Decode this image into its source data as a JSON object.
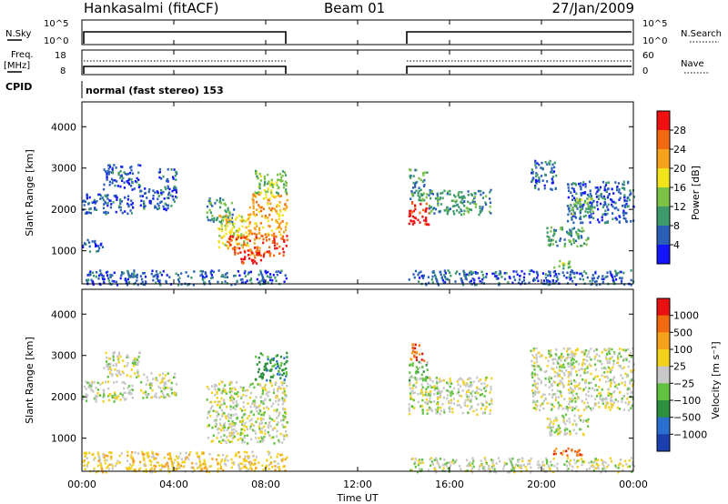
{
  "header": {
    "station": "Hankasalmi (fitACF)",
    "beam": "Beam 01",
    "date": "27/Jan/2009"
  },
  "noise_panel": {
    "left_label": "N.Sky",
    "left_ticks": [
      "10^5",
      "10^0"
    ],
    "right_ticks": [
      "10^5",
      "10^0"
    ],
    "right_label": "N.Search",
    "gap_utc": [
      8.83,
      14.25
    ]
  },
  "freq_panel": {
    "left_label_1": "Freq.",
    "left_label_2": "[MHz]",
    "left_ticks": [
      "18",
      "8"
    ],
    "right_ticks": [
      "60",
      "0"
    ],
    "right_label": "Nave"
  },
  "cpid_panel": {
    "label": "CPID",
    "program": "normal (fast stereo) 153"
  },
  "time_axis": {
    "ticks": [
      "00:00",
      "04:00",
      "08:00",
      "12:00",
      "16:00",
      "20:00",
      "00:00"
    ],
    "label": "Time UT"
  },
  "chart_data": [
    {
      "type": "heatmap",
      "quantity": "Power",
      "ylabel": "Slant Range [km]",
      "xlabel": "Time UT",
      "xlim_hours": [
        0,
        24
      ],
      "ylim_km": [
        200,
        4600
      ],
      "yticks": [
        "1000",
        "2000",
        "3000",
        "4000"
      ],
      "colorbar": {
        "label": "Power [dB]",
        "ticks": [
          "4",
          "8",
          "12",
          "16",
          "20",
          "24",
          "28"
        ],
        "colors": [
          "#1414ff",
          "#2a5fb8",
          "#3d9a6a",
          "#7cc247",
          "#f2e41c",
          "#f7a21c",
          "#f26a10",
          "#f01010"
        ]
      },
      "regions": [
        {
          "t": [
            0.0,
            2.2
          ],
          "r": [
            1900,
            2400
          ],
          "level": 1
        },
        {
          "t": [
            0.0,
            0.9
          ],
          "r": [
            1000,
            1300
          ],
          "level": 1
        },
        {
          "t": [
            0.9,
            2.5
          ],
          "r": [
            2500,
            3100
          ],
          "level": 1
        },
        {
          "t": [
            2.5,
            4.1
          ],
          "r": [
            2000,
            2600
          ],
          "level": 1
        },
        {
          "t": [
            3.3,
            4.1
          ],
          "r": [
            2700,
            3000
          ],
          "level": 1
        },
        {
          "t": [
            5.4,
            6.6
          ],
          "r": [
            1700,
            2300
          ],
          "level": 2
        },
        {
          "t": [
            5.9,
            7.2
          ],
          "r": [
            1100,
            1900
          ],
          "level": 4
        },
        {
          "t": [
            6.3,
            8.9
          ],
          "r": [
            900,
            1400
          ],
          "level": 6
        },
        {
          "t": [
            7.2,
            8.9
          ],
          "r": [
            1400,
            2400
          ],
          "level": 5
        },
        {
          "t": [
            7.5,
            8.9
          ],
          "r": [
            2400,
            3000
          ],
          "level": 3
        },
        {
          "t": [
            6.8,
            7.9
          ],
          "r": [
            700,
            1000
          ],
          "level": 7
        },
        {
          "t": [
            14.2,
            15.1
          ],
          "r": [
            1600,
            2200
          ],
          "level": 7
        },
        {
          "t": [
            15.0,
            17.8
          ],
          "r": [
            1900,
            2500
          ],
          "level": 2
        },
        {
          "t": [
            14.2,
            15.0
          ],
          "r": [
            2200,
            3000
          ],
          "level": 2
        },
        {
          "t": [
            19.5,
            20.6
          ],
          "r": [
            2500,
            3200
          ],
          "level": 1
        },
        {
          "t": [
            20.2,
            22.0
          ],
          "r": [
            1100,
            1600
          ],
          "level": 2
        },
        {
          "t": [
            21.1,
            24.0
          ],
          "r": [
            1700,
            2700
          ],
          "level": 1
        },
        {
          "t": [
            21.2,
            22.3
          ],
          "r": [
            1900,
            2300
          ],
          "level": 3
        },
        {
          "t": [
            20.4,
            21.3
          ],
          "r": [
            600,
            800
          ],
          "level": 3
        },
        {
          "t": [
            0.0,
            8.9
          ],
          "r": [
            200,
            550
          ],
          "level": 1
        },
        {
          "t": [
            14.2,
            24.0
          ],
          "r": [
            200,
            550
          ],
          "level": 1
        }
      ]
    },
    {
      "type": "heatmap",
      "quantity": "Velocity",
      "ylabel": "Slant Range [km]",
      "xlabel": "Time UT",
      "xlim_hours": [
        0,
        24
      ],
      "ylim_km": [
        200,
        4600
      ],
      "yticks": [
        "1000",
        "2000",
        "3000",
        "4000"
      ],
      "colorbar": {
        "label": "Velocity [m s⁻¹]",
        "ticks": [
          "1000",
          "500",
          "100",
          "25",
          "−25",
          "−100",
          "−500",
          "−1000"
        ],
        "colors": [
          "#1c3fae",
          "#2a6fd0",
          "#2e8f3e",
          "#60c240",
          "#c8c8c8",
          "#f2d21c",
          "#f7a21c",
          "#f26a10",
          "#e81010"
        ]
      },
      "regions": [
        {
          "t": [
            0.0,
            2.2
          ],
          "r": [
            1900,
            2400
          ],
          "level": 4
        },
        {
          "t": [
            0.9,
            2.5
          ],
          "r": [
            2500,
            3100
          ],
          "level": 4
        },
        {
          "t": [
            2.5,
            4.1
          ],
          "r": [
            2000,
            2600
          ],
          "level": 4
        },
        {
          "t": [
            5.4,
            8.9
          ],
          "r": [
            900,
            2400
          ],
          "level": 4
        },
        {
          "t": [
            7.5,
            8.9
          ],
          "r": [
            2400,
            3100
          ],
          "level": 2
        },
        {
          "t": [
            14.2,
            14.9
          ],
          "r": [
            2900,
            3300
          ],
          "level": 7
        },
        {
          "t": [
            14.2,
            15.0
          ],
          "r": [
            2400,
            2900
          ],
          "level": 3
        },
        {
          "t": [
            14.2,
            17.8
          ],
          "r": [
            1600,
            2500
          ],
          "level": 4
        },
        {
          "t": [
            19.5,
            24.0
          ],
          "r": [
            1700,
            3200
          ],
          "level": 4
        },
        {
          "t": [
            20.2,
            22.0
          ],
          "r": [
            1100,
            1600
          ],
          "level": 4
        },
        {
          "t": [
            20.5,
            21.8
          ],
          "r": [
            600,
            800
          ],
          "level": 7
        },
        {
          "t": [
            0.0,
            8.9
          ],
          "r": [
            200,
            700
          ],
          "level": 5
        },
        {
          "t": [
            14.2,
            24.0
          ],
          "r": [
            200,
            550
          ],
          "level": 4
        }
      ]
    }
  ]
}
